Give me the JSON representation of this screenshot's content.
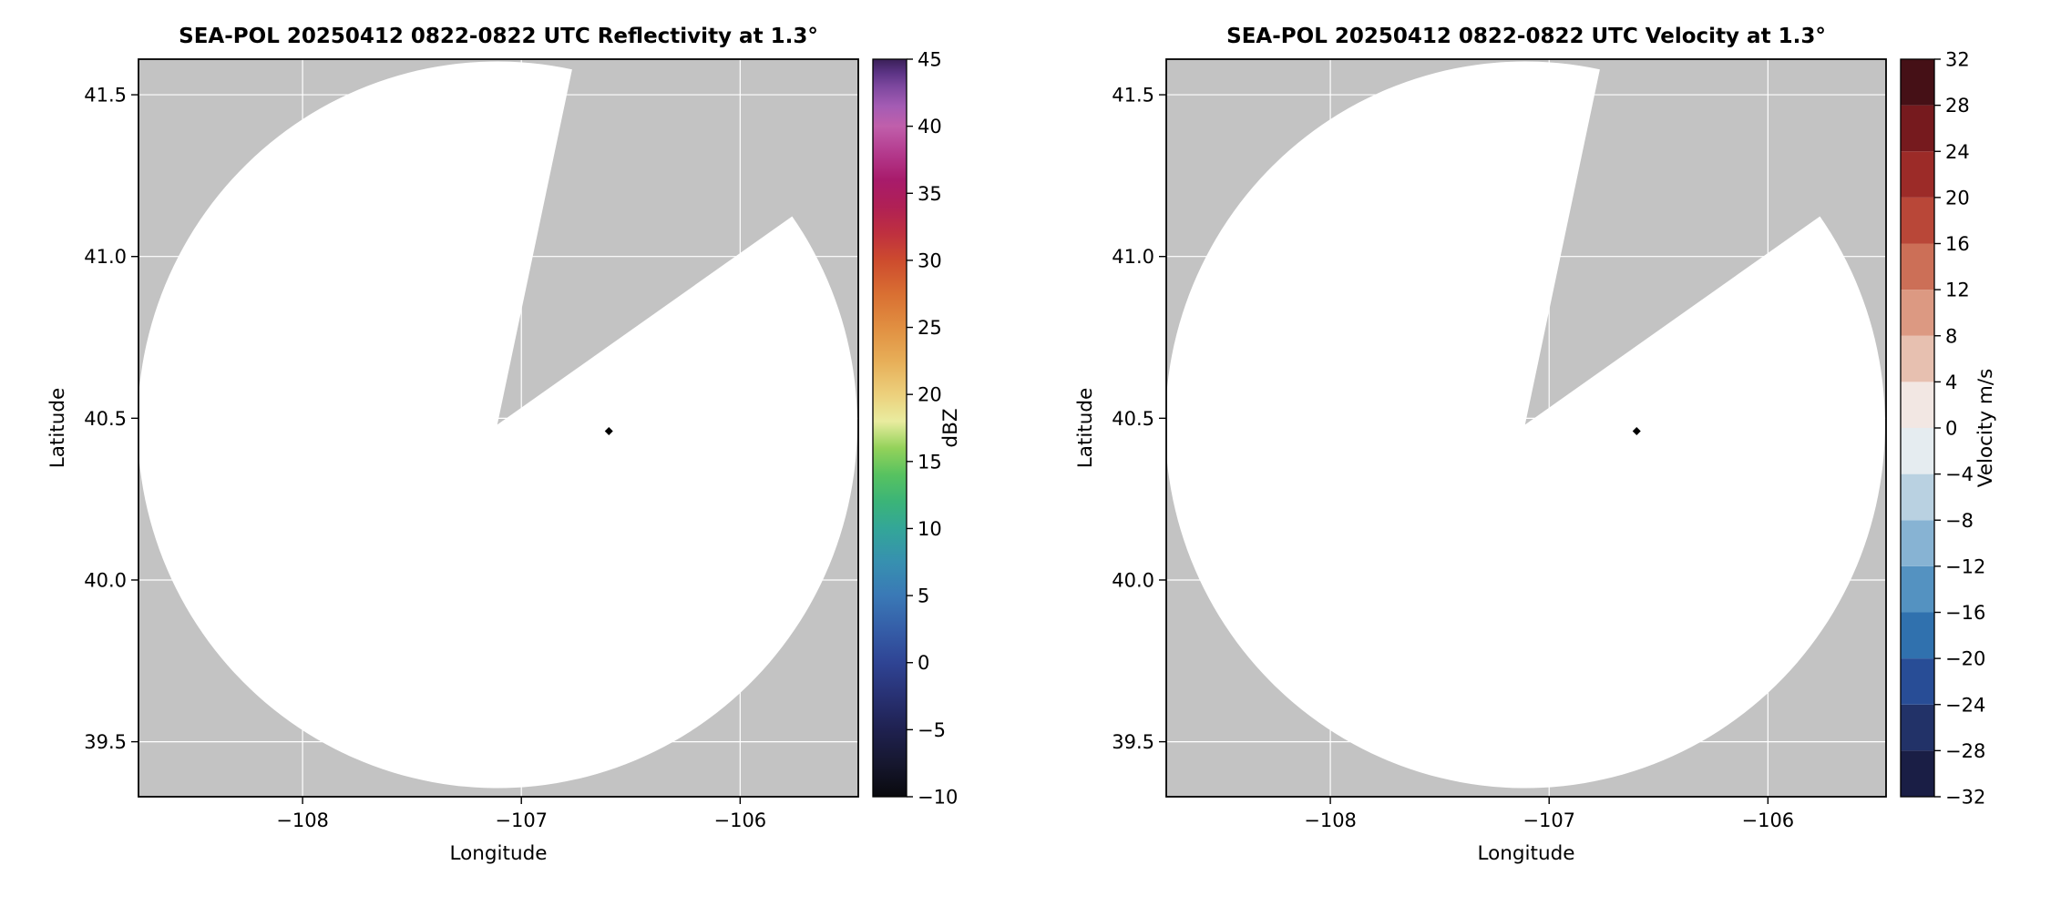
{
  "colors": {
    "figure_background": "#ffffff",
    "no_data_fill": "#c3c3c3",
    "scan_fill": "#ffffff",
    "grid_line": "#ffffff",
    "axis_line": "#000000",
    "marker": "#000000"
  },
  "chart_data": [
    {
      "type": "radar_ppi_map",
      "title": "SEA-POL 20250412 0822-0822 UTC Reflectivity at 1.3°",
      "xlabel": "Longitude",
      "ylabel": "Latitude",
      "xlim": [
        -108.75,
        -105.46
      ],
      "ylim": [
        39.33,
        41.61
      ],
      "grid": true,
      "xticks": {
        "values": [
          -108,
          -107,
          -106
        ],
        "labels": [
          "−108",
          "−107",
          "−106"
        ]
      },
      "yticks": {
        "values": [
          39.5,
          40.0,
          40.5,
          41.0,
          41.5
        ],
        "labels": [
          "39.5",
          "40.0",
          "40.5",
          "41.0",
          "41.5"
        ]
      },
      "scan": {
        "center_lon": -107.11,
        "center_lat": 40.48,
        "radius_lon_deg": 1.645,
        "radius_lat_deg": 1.123,
        "missing_sector_azimuth_deg": [
          12,
          55
        ]
      },
      "radar_marker": {
        "lon": -106.6,
        "lat": 40.46
      },
      "colorbar": {
        "label": "dBZ",
        "min": -10,
        "max": 45,
        "style": "continuous",
        "ticks": {
          "values": [
            -10,
            -5,
            0,
            5,
            10,
            15,
            20,
            25,
            30,
            35,
            40,
            45
          ],
          "labels": [
            "−10",
            "−5",
            "0",
            "5",
            "10",
            "15",
            "20",
            "25",
            "30",
            "35",
            "40",
            "45"
          ]
        },
        "gradient_stops": [
          [
            -10,
            "#09090d"
          ],
          [
            -7.5,
            "#16172f"
          ],
          [
            -5,
            "#1f2150"
          ],
          [
            -2.5,
            "#283173"
          ],
          [
            0,
            "#2f4494"
          ],
          [
            2.5,
            "#355ea8"
          ],
          [
            5,
            "#3a79b6"
          ],
          [
            7.5,
            "#3790b0"
          ],
          [
            10,
            "#33a698"
          ],
          [
            12,
            "#3bb478"
          ],
          [
            14,
            "#57c260"
          ],
          [
            16,
            "#93d25a"
          ],
          [
            18,
            "#e9ec9f"
          ],
          [
            20,
            "#ecd07c"
          ],
          [
            22.5,
            "#e7ae58"
          ],
          [
            25,
            "#e18f41"
          ],
          [
            27.5,
            "#d96f32"
          ],
          [
            30,
            "#cd4b2e"
          ],
          [
            32,
            "#bf303f"
          ],
          [
            34,
            "#b02055"
          ],
          [
            36,
            "#a81b6b"
          ],
          [
            38,
            "#b43a8d"
          ],
          [
            40,
            "#c05fab"
          ],
          [
            41.5,
            "#a45cb4"
          ],
          [
            43,
            "#7c479e"
          ],
          [
            44,
            "#5b3384"
          ],
          [
            45,
            "#3a2058"
          ]
        ]
      }
    },
    {
      "type": "radar_ppi_map",
      "title": "SEA-POL 20250412 0822-0822 UTC Velocity at 1.3°",
      "xlabel": "Longitude",
      "ylabel": "Latitude",
      "xlim": [
        -108.75,
        -105.46
      ],
      "ylim": [
        39.33,
        41.61
      ],
      "grid": true,
      "xticks": {
        "values": [
          -108,
          -107,
          -106
        ],
        "labels": [
          "−108",
          "−107",
          "−106"
        ]
      },
      "yticks": {
        "values": [
          39.5,
          40.0,
          40.5,
          41.0,
          41.5
        ],
        "labels": [
          "39.5",
          "40.0",
          "40.5",
          "41.0",
          "41.5"
        ]
      },
      "scan": {
        "center_lon": -107.11,
        "center_lat": 40.48,
        "radius_lon_deg": 1.645,
        "radius_lat_deg": 1.123,
        "missing_sector_azimuth_deg": [
          12,
          55
        ]
      },
      "radar_marker": {
        "lon": -106.6,
        "lat": 40.46
      },
      "colorbar": {
        "label": "Velocity m/s",
        "min": -32,
        "max": 32,
        "style": "discrete",
        "ticks": {
          "values": [
            -32,
            -28,
            -24,
            -20,
            -16,
            -12,
            -8,
            -4,
            0,
            4,
            8,
            12,
            16,
            20,
            24,
            28,
            32
          ],
          "labels": [
            "−32",
            "−28",
            "−24",
            "−20",
            "−16",
            "−12",
            "−8",
            "−4",
            "0",
            "4",
            "8",
            "12",
            "16",
            "20",
            "24",
            "28",
            "32"
          ]
        },
        "segments": [
          {
            "from": -32,
            "to": -28,
            "color": "#1a1e45"
          },
          {
            "from": -28,
            "to": -24,
            "color": "#223268"
          },
          {
            "from": -24,
            "to": -20,
            "color": "#284d96"
          },
          {
            "from": -20,
            "to": -16,
            "color": "#3071ae"
          },
          {
            "from": -16,
            "to": -12,
            "color": "#5492c1"
          },
          {
            "from": -12,
            "to": -8,
            "color": "#87b3d3"
          },
          {
            "from": -8,
            "to": -4,
            "color": "#b9d1e1"
          },
          {
            "from": -4,
            "to": 0,
            "color": "#e5ecf0"
          },
          {
            "from": 0,
            "to": 4,
            "color": "#f2e7e3"
          },
          {
            "from": 4,
            "to": 8,
            "color": "#e7c0b0"
          },
          {
            "from": 8,
            "to": 12,
            "color": "#dc9982"
          },
          {
            "from": 12,
            "to": 16,
            "color": "#cc6f57"
          },
          {
            "from": 16,
            "to": 20,
            "color": "#b94738"
          },
          {
            "from": 20,
            "to": 24,
            "color": "#9c2b28"
          },
          {
            "from": 24,
            "to": 28,
            "color": "#761a1e"
          },
          {
            "from": 28,
            "to": 32,
            "color": "#451016"
          }
        ]
      }
    }
  ]
}
